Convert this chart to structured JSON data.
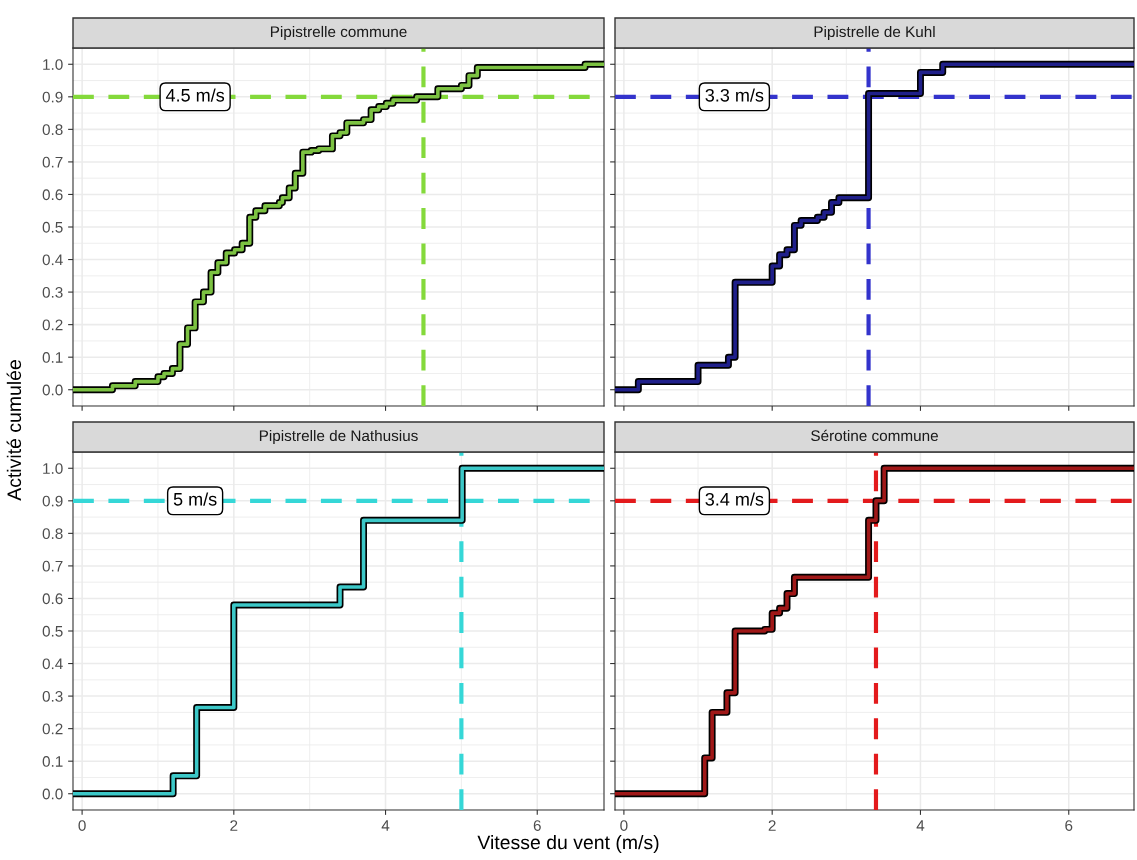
{
  "chart_data": [
    {
      "type": "step",
      "title": "Pipistrelle commune",
      "ylabel": "Activité cumulée",
      "xlim": [
        -0.12,
        6.88
      ],
      "ylim": [
        -0.05,
        1.05
      ],
      "xticks": [
        {
          "value": 0,
          "label": null
        },
        {
          "value": 2,
          "label": null
        },
        {
          "value": 4,
          "label": null
        },
        {
          "value": 6,
          "label": null
        }
      ],
      "yticks": [
        {
          "value": 0,
          "label": "0.0"
        },
        0.1,
        0.2,
        0.3,
        0.4,
        0.5,
        0.6,
        0.7,
        0.8,
        0.9,
        {
          "value": 1,
          "label": "1.0"
        }
      ],
      "tick_labels": "y",
      "grid": true,
      "legend": false,
      "series": [
        {
          "color": "#7cc242",
          "x": [
            -0.12,
            0.4,
            0.7,
            1.0,
            1.08,
            1.19,
            1.29,
            1.39,
            1.49,
            1.6,
            1.7,
            1.79,
            1.9,
            2.01,
            2.11,
            2.21,
            2.29,
            2.41,
            2.6,
            2.64,
            2.73,
            2.81,
            2.91,
            3.02,
            3.12,
            3.3,
            3.4,
            3.49,
            3.71,
            3.81,
            3.91,
            4.01,
            4.1,
            4.41,
            4.69,
            5.0,
            5.1,
            5.21,
            6.63,
            6.88
          ],
          "values": [
            0,
            0.012,
            0.025,
            0.04,
            0.05,
            0.065,
            0.14,
            0.19,
            0.27,
            0.3,
            0.36,
            0.39,
            0.42,
            0.43,
            0.45,
            0.53,
            0.55,
            0.565,
            0.575,
            0.59,
            0.62,
            0.665,
            0.73,
            0.735,
            0.74,
            0.78,
            0.79,
            0.82,
            0.83,
            0.86,
            0.87,
            0.88,
            0.89,
            0.9,
            0.925,
            0.935,
            0.965,
            0.99,
            1.0,
            1.0
          ]
        }
      ],
      "ref_lines": [
        {
          "axis": "y",
          "value": 0.9,
          "color": "#84d93b",
          "line_style": "dashed"
        },
        {
          "axis": "x",
          "value": 4.5,
          "color": "#84d93b",
          "line_style": "dashed"
        }
      ],
      "annotations": [
        "4.5 m/s"
      ]
    },
    {
      "type": "step",
      "title": "Pipistrelle de Kuhl",
      "xlim": [
        -0.12,
        6.88
      ],
      "ylim": [
        -0.05,
        1.05
      ],
      "xticks": [
        {
          "value": 0,
          "label": null
        },
        {
          "value": 2,
          "label": null
        },
        {
          "value": 4,
          "label": null
        },
        {
          "value": 6,
          "label": null
        }
      ],
      "yticks": [
        {
          "value": 0,
          "label": null
        },
        {
          "value": 0.1,
          "label": null
        },
        {
          "value": 0.2,
          "label": null
        },
        {
          "value": 0.3,
          "label": null
        },
        {
          "value": 0.4,
          "label": null
        },
        {
          "value": 0.5,
          "label": null
        },
        {
          "value": 0.6,
          "label": null
        },
        {
          "value": 0.7,
          "label": null
        },
        {
          "value": 0.8,
          "label": null
        },
        {
          "value": 0.9,
          "label": null
        },
        {
          "value": 1,
          "label": null
        }
      ],
      "tick_labels": false,
      "grid": true,
      "legend": false,
      "series": [
        {
          "color": "#1f1f8a",
          "x": [
            -0.12,
            0.195,
            1.0,
            1.41,
            1.5,
            2.0,
            2.1,
            2.2,
            2.3,
            2.39,
            2.61,
            2.7,
            2.8,
            2.9,
            3.3,
            4.0,
            4.3,
            6.88
          ],
          "values": [
            0,
            0.025,
            0.075,
            0.1,
            0.33,
            0.38,
            0.415,
            0.43,
            0.505,
            0.52,
            0.53,
            0.545,
            0.575,
            0.59,
            0.91,
            0.975,
            1.0,
            1.0
          ]
        }
      ],
      "ref_lines": [
        {
          "axis": "y",
          "value": 0.9,
          "color": "#3333cc",
          "line_style": "dashed"
        },
        {
          "axis": "x",
          "value": 3.3,
          "color": "#3333cc",
          "line_style": "dashed"
        }
      ],
      "annotations": [
        "3.3 m/s"
      ]
    },
    {
      "type": "step",
      "title": "Pipistrelle de Nathusius",
      "xlabel": "Vitesse du vent (m/s)",
      "xlim": [
        -0.12,
        6.88
      ],
      "ylim": [
        -0.05,
        1.05
      ],
      "xticks": [
        0,
        2,
        4,
        6
      ],
      "yticks": [
        {
          "value": 0,
          "label": "0.0"
        },
        0.1,
        0.2,
        0.3,
        0.4,
        0.5,
        0.6,
        0.7,
        0.8,
        0.9,
        {
          "value": 1,
          "label": "1.0"
        }
      ],
      "grid": true,
      "legend": false,
      "series": [
        {
          "color": "#3cc8c8",
          "x": [
            -0.12,
            1.2,
            1.51,
            2.0,
            3.4,
            3.71,
            5.01,
            6.88
          ],
          "values": [
            0,
            0.055,
            0.265,
            0.58,
            0.635,
            0.84,
            1.0,
            1.0
          ]
        }
      ],
      "ref_lines": [
        {
          "axis": "y",
          "value": 0.9,
          "color": "#35d7d7",
          "line_style": "dashed"
        },
        {
          "axis": "x",
          "value": 5,
          "color": "#35d7d7",
          "line_style": "dashed"
        }
      ],
      "annotations": [
        "5 m/s"
      ]
    },
    {
      "type": "step",
      "title": "Sérotine commune",
      "xlim": [
        -0.12,
        6.88
      ],
      "ylim": [
        -0.05,
        1.05
      ],
      "xticks": [
        0,
        2,
        4,
        6
      ],
      "yticks": [
        {
          "value": 0,
          "label": null
        },
        {
          "value": 0.1,
          "label": null
        },
        {
          "value": 0.2,
          "label": null
        },
        {
          "value": 0.3,
          "label": null
        },
        {
          "value": 0.4,
          "label": null
        },
        {
          "value": 0.5,
          "label": null
        },
        {
          "value": 0.6,
          "label": null
        },
        {
          "value": 0.7,
          "label": null
        },
        {
          "value": 0.8,
          "label": null
        },
        {
          "value": 0.9,
          "label": null
        },
        {
          "value": 1,
          "label": null
        }
      ],
      "tick_labels": "x",
      "grid": true,
      "legend": false,
      "series": [
        {
          "color": "#a01818",
          "x": [
            -0.12,
            1.09,
            1.19,
            1.39,
            1.5,
            1.9,
            2.0,
            2.1,
            2.2,
            2.3,
            3.3,
            3.4,
            3.51,
            6.88
          ],
          "values": [
            0,
            0.11,
            0.25,
            0.31,
            0.5,
            0.505,
            0.555,
            0.57,
            0.615,
            0.665,
            0.84,
            0.9,
            1.0,
            1.0
          ]
        }
      ],
      "ref_lines": [
        {
          "axis": "y",
          "value": 0.9,
          "color": "#e31a1c",
          "line_style": "dashed"
        },
        {
          "axis": "x",
          "value": 3.4,
          "color": "#e31a1c",
          "line_style": "dashed"
        }
      ],
      "annotations": [
        "3.4 m/s"
      ]
    }
  ]
}
